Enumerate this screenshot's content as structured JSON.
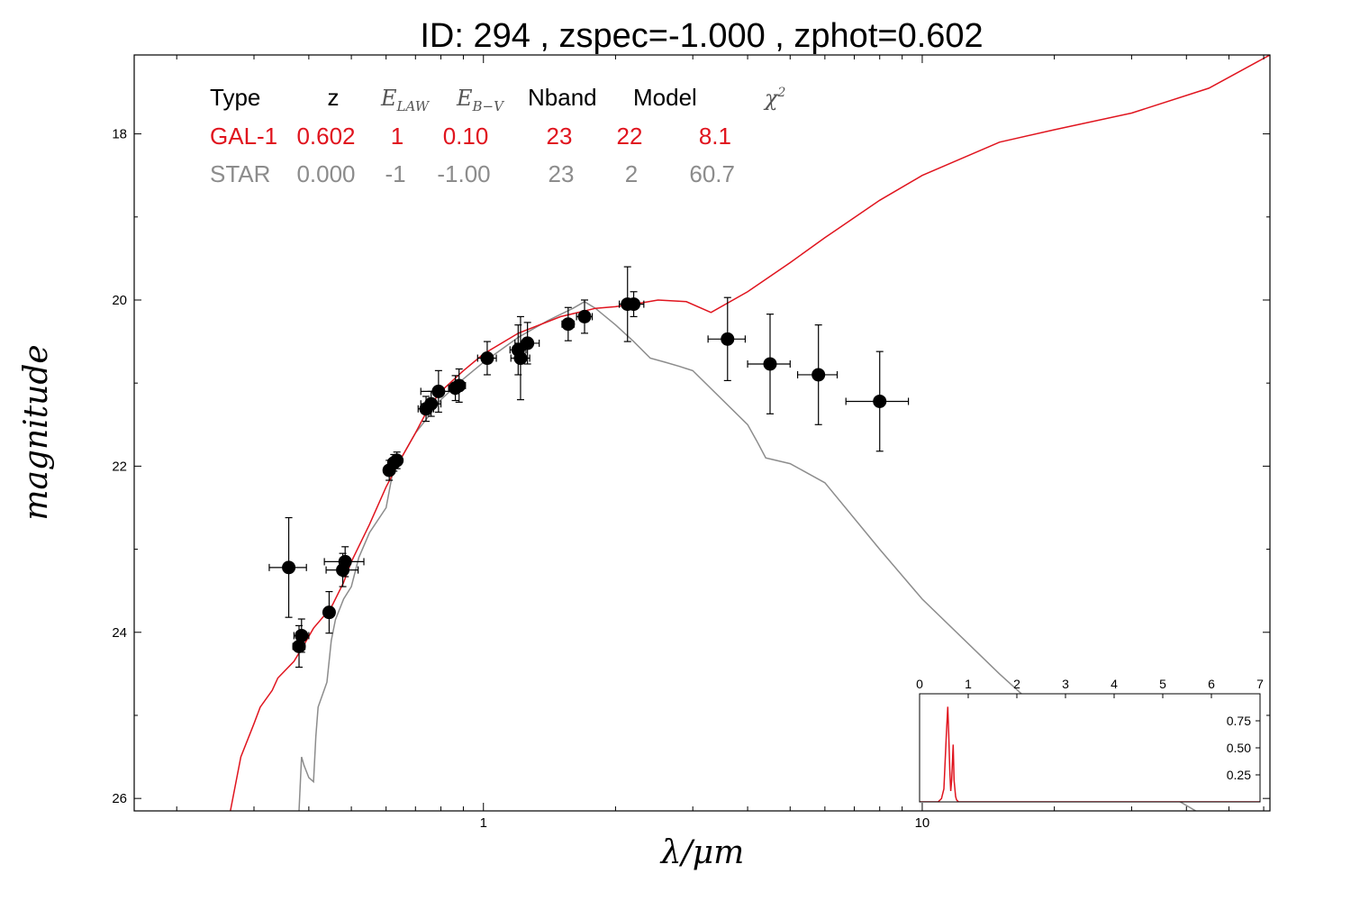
{
  "title": "ID:  294   , zspec=-1.000 , zphot=0.602",
  "colors": {
    "galaxy": "#e0141e",
    "star": "#8c8c8c",
    "points": "#000000",
    "frame": "#000000"
  },
  "chart_data": [
    {
      "type": "scatter",
      "xlabel": "λ/μm",
      "ylabel": "magnitude",
      "xscale": "log",
      "xlim": [
        0.16,
        62
      ],
      "ylim": [
        26.15,
        17.05
      ],
      "y_inverted": true,
      "grid": false,
      "xticks": [
        1,
        10
      ],
      "xtick_labels": [
        "1",
        "10"
      ],
      "yticks": [
        18,
        20,
        22,
        24,
        26
      ],
      "ytick_labels": [
        "18",
        "20",
        "22",
        "24",
        "26"
      ],
      "legend_table": {
        "placement": "top-left",
        "headers": [
          "Type",
          "z",
          "E_LAW",
          "E_B-V",
          "Nband",
          "Model",
          "χ²"
        ],
        "rows": [
          {
            "type": "GAL-1",
            "z": "0.602",
            "elaw": "1",
            "ebv": "0.10",
            "nband": "23",
            "model": "22",
            "chi2": "8.1"
          },
          {
            "type": "STAR",
            "z": "0.000",
            "elaw": "-1",
            "ebv": "-1.00",
            "nband": "23",
            "model": "2",
            "chi2": "60.7"
          }
        ]
      },
      "points": [
        {
          "x": 0.36,
          "y": 23.22,
          "xerr": [
            0.035,
            0.035
          ],
          "yerr": [
            0.6,
            0.6
          ]
        },
        {
          "x": 0.38,
          "y": 24.17,
          "xerr": [
            0.012,
            0.012
          ],
          "yerr": [
            0.25,
            0.25
          ]
        },
        {
          "x": 0.385,
          "y": 24.04,
          "xerr": [
            0.015,
            0.015
          ],
          "yerr": [
            0.2,
            0.2
          ]
        },
        {
          "x": 0.445,
          "y": 23.76,
          "xerr": [
            0.012,
            0.012
          ],
          "yerr": [
            0.25,
            0.25
          ]
        },
        {
          "x": 0.478,
          "y": 23.25,
          "xerr": [
            0.04,
            0.04
          ],
          "yerr": [
            0.2,
            0.2
          ]
        },
        {
          "x": 0.484,
          "y": 23.15,
          "xerr": [
            0.05,
            0.05
          ],
          "yerr": [
            0.18,
            0.18
          ]
        },
        {
          "x": 0.61,
          "y": 22.05,
          "xerr": [
            0.015,
            0.015
          ],
          "yerr": [
            0.12,
            0.12
          ]
        },
        {
          "x": 0.625,
          "y": 21.96,
          "xerr": [
            0.018,
            0.018
          ],
          "yerr": [
            0.1,
            0.1
          ]
        },
        {
          "x": 0.635,
          "y": 21.93,
          "xerr": [
            0.012,
            0.012
          ],
          "yerr": [
            0.1,
            0.1
          ]
        },
        {
          "x": 0.74,
          "y": 21.31,
          "xerr": [
            0.03,
            0.03
          ],
          "yerr": [
            0.15,
            0.15
          ]
        },
        {
          "x": 0.76,
          "y": 21.25,
          "xerr": [
            0.04,
            0.04
          ],
          "yerr": [
            0.15,
            0.15
          ]
        },
        {
          "x": 0.79,
          "y": 21.1,
          "xerr": [
            0.07,
            0.07
          ],
          "yerr": [
            0.25,
            0.25
          ]
        },
        {
          "x": 0.863,
          "y": 21.06,
          "xerr": [
            0.03,
            0.03
          ],
          "yerr": [
            0.15,
            0.15
          ]
        },
        {
          "x": 0.88,
          "y": 21.03,
          "xerr": [
            0.03,
            0.03
          ],
          "yerr": [
            0.2,
            0.2
          ]
        },
        {
          "x": 1.02,
          "y": 20.7,
          "xerr": [
            0.05,
            0.05
          ],
          "yerr": [
            0.2,
            0.2
          ]
        },
        {
          "x": 1.2,
          "y": 20.6,
          "xerr": [
            0.05,
            0.05
          ],
          "yerr": [
            0.3,
            0.3
          ]
        },
        {
          "x": 1.215,
          "y": 20.7,
          "xerr": [
            0.06,
            0.06
          ],
          "yerr": [
            0.5,
            0.5
          ]
        },
        {
          "x": 1.26,
          "y": 20.52,
          "xerr": [
            0.08,
            0.08
          ],
          "yerr": [
            0.25,
            0.25
          ]
        },
        {
          "x": 1.56,
          "y": 20.29,
          "xerr": [
            0.05,
            0.05
          ],
          "yerr": [
            0.2,
            0.2
          ]
        },
        {
          "x": 1.7,
          "y": 20.2,
          "xerr": [
            0.07,
            0.07
          ],
          "yerr": [
            0.2,
            0.2
          ]
        },
        {
          "x": 2.13,
          "y": 20.05,
          "xerr": [
            0.09,
            0.09
          ],
          "yerr": [
            0.45,
            0.45
          ]
        },
        {
          "x": 2.2,
          "y": 20.05,
          "xerr": [
            0.12,
            0.12
          ],
          "yerr": [
            0.15,
            0.15
          ]
        },
        {
          "x": 3.6,
          "y": 20.47,
          "xerr": [
            0.35,
            0.35
          ],
          "yerr": [
            0.5,
            0.5
          ]
        },
        {
          "x": 4.5,
          "y": 20.77,
          "xerr": [
            0.5,
            0.5
          ],
          "yerr": [
            0.6,
            0.6
          ]
        },
        {
          "x": 5.8,
          "y": 20.9,
          "xerr": [
            0.6,
            0.6
          ],
          "yerr": [
            0.6,
            0.6
          ]
        },
        {
          "x": 8.0,
          "y": 21.22,
          "xerr": [
            1.3,
            1.3
          ],
          "yerr": [
            0.6,
            0.6
          ]
        }
      ],
      "series": [
        {
          "name": "GAL-1",
          "type": "line",
          "x": [
            0.265,
            0.28,
            0.3,
            0.31,
            0.33,
            0.34,
            0.37,
            0.39,
            0.41,
            0.45,
            0.48,
            0.5,
            0.55,
            0.6,
            0.65,
            0.7,
            0.75,
            0.8,
            0.9,
            1.0,
            1.2,
            1.5,
            1.8,
            2.0,
            2.2,
            2.5,
            2.9,
            3.3,
            4.0,
            5.0,
            6.0,
            8.0,
            10.0,
            15.0,
            20.0,
            30.0,
            45.0,
            62.0
          ],
          "y": [
            26.15,
            25.5,
            25.1,
            24.9,
            24.7,
            24.55,
            24.35,
            24.15,
            23.95,
            23.7,
            23.4,
            23.15,
            22.7,
            22.25,
            21.9,
            21.6,
            21.3,
            21.1,
            20.85,
            20.65,
            20.4,
            20.2,
            20.1,
            20.08,
            20.05,
            20.0,
            20.02,
            20.15,
            19.9,
            19.55,
            19.25,
            18.8,
            18.5,
            18.1,
            17.95,
            17.75,
            17.45,
            17.05
          ]
        },
        {
          "name": "STAR",
          "type": "line",
          "x": [
            0.38,
            0.385,
            0.39,
            0.4,
            0.41,
            0.415,
            0.42,
            0.44,
            0.45,
            0.46,
            0.48,
            0.5,
            0.52,
            0.55,
            0.6,
            0.62,
            0.65,
            0.7,
            0.75,
            0.8,
            0.9,
            1.0,
            1.2,
            1.4,
            1.6,
            1.7,
            1.8,
            2.0,
            2.2,
            2.4,
            2.6,
            2.8,
            3.0,
            4.0,
            4.2,
            4.4,
            5.0,
            6.0,
            8.0,
            10.0,
            15.0,
            20.0,
            30.0,
            42.0
          ],
          "y": [
            26.15,
            25.5,
            25.6,
            25.75,
            25.8,
            25.25,
            24.9,
            24.6,
            24.1,
            23.85,
            23.6,
            23.45,
            23.1,
            22.8,
            22.5,
            22.1,
            21.9,
            21.6,
            21.4,
            21.2,
            20.95,
            20.75,
            20.45,
            20.25,
            20.1,
            20.02,
            20.1,
            20.3,
            20.5,
            20.7,
            20.75,
            20.8,
            20.85,
            21.5,
            21.7,
            21.9,
            21.97,
            22.2,
            23.0,
            23.6,
            24.5,
            25.1,
            25.7,
            26.15
          ]
        }
      ]
    },
    {
      "type": "line",
      "title": "",
      "xlim": [
        0,
        7
      ],
      "ylim": [
        0,
        1.0
      ],
      "xticks": [
        0,
        1,
        2,
        3,
        4,
        5,
        6,
        7
      ],
      "xtick_labels": [
        "0",
        "1",
        "2",
        "3",
        "4",
        "5",
        "6",
        "7"
      ],
      "yticks": [
        0.25,
        0.5,
        0.75
      ],
      "ytick_labels": [
        "0.25",
        "0.50",
        "0.75"
      ],
      "series": [
        {
          "x": [
            0.0,
            0.38,
            0.45,
            0.5,
            0.55,
            0.58,
            0.6,
            0.62,
            0.64,
            0.66,
            0.69,
            0.71,
            0.74,
            0.76,
            0.8,
            7.0
          ],
          "y": [
            0.0,
            0.0,
            0.03,
            0.12,
            0.62,
            0.88,
            0.62,
            0.3,
            0.1,
            0.2,
            0.53,
            0.2,
            0.05,
            0.02,
            0.0,
            0.0
          ]
        }
      ]
    }
  ]
}
